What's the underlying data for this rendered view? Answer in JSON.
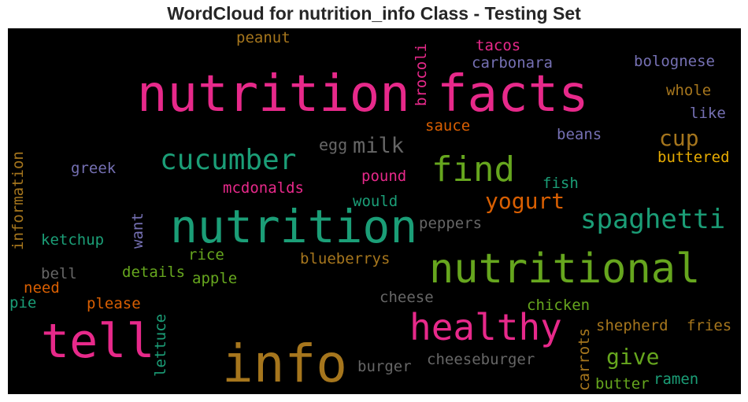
{
  "title": "WordCloud for nutrition_info Class - Testing Set",
  "colors": {
    "pink": "#e7298a",
    "teal": "#1b9e77",
    "green": "#66a61e",
    "orange": "#d95f02",
    "purple": "#7570b3",
    "gold": "#a6761d",
    "yellow": "#e6ab02",
    "gray": "#666666"
  },
  "words": {
    "nutrition_facts_1": "nutrition",
    "facts": "facts",
    "nutrition": "nutrition",
    "info": "info",
    "nutritional": "nutritional",
    "tell": "tell",
    "healthy": "healthy",
    "find": "find",
    "cucumber": "cucumber",
    "spaghetti": "spaghetti",
    "yogurt": "yogurt",
    "milk": "milk",
    "cup": "cup",
    "give": "give",
    "egg": "egg",
    "peanut": "peanut",
    "brocoli": "brocoli",
    "tacos": "tacos",
    "carbonara": "carbonara",
    "bolognese": "bolognese",
    "whole": "whole",
    "like": "like",
    "sauce": "sauce",
    "beans": "beans",
    "buttered": "buttered",
    "information": "information",
    "greek": "greek",
    "mcdonalds": "mcdonalds",
    "pound": "pound",
    "fish": "fish",
    "would": "would",
    "want": "want",
    "ketchup": "ketchup",
    "peppers": "peppers",
    "rice": "rice",
    "blueberrys": "blueberrys",
    "bell": "bell",
    "details": "details",
    "apple": "apple",
    "need": "need",
    "pie": "pie",
    "cheese": "cheese",
    "please": "please",
    "chicken": "chicken",
    "lettuce": "lettuce",
    "carrots": "carrots",
    "shepherd": "shepherd",
    "fries": "fries",
    "burger": "burger",
    "cheeseburger": "cheeseburger",
    "butter": "butter",
    "ramen": "ramen"
  }
}
